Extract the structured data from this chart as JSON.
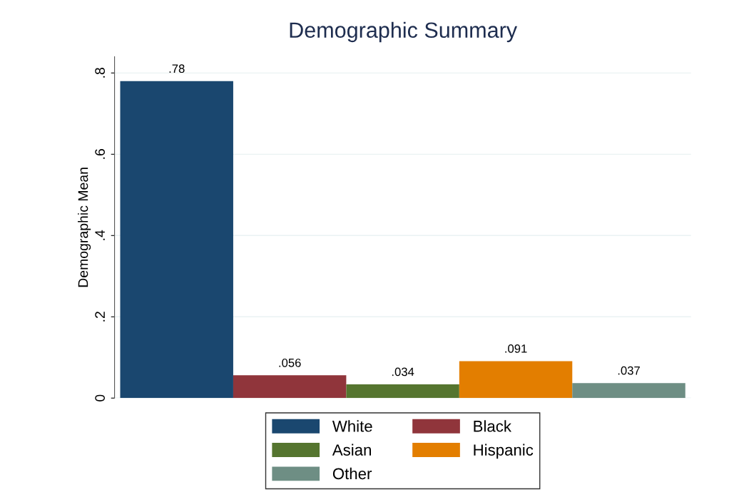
{
  "chart_data": {
    "type": "bar",
    "title": "Demographic Summary",
    "ylabel": "Demographic Mean",
    "categories": [
      null
    ],
    "series": [
      {
        "name": "White",
        "color": "#1a476f",
        "values": [
          0.78
        ],
        "value_labels": [
          ".78"
        ]
      },
      {
        "name": "Black",
        "color": "#90353b",
        "values": [
          0.056
        ],
        "value_labels": [
          ".056"
        ]
      },
      {
        "name": "Asian",
        "color": "#55752f",
        "values": [
          0.034
        ],
        "value_labels": [
          ".034"
        ]
      },
      {
        "name": "Hispanic",
        "color": "#e37e00",
        "values": [
          0.091
        ],
        "value_labels": [
          ".091"
        ]
      },
      {
        "name": "Other",
        "color": "#6e8e84",
        "values": [
          0.037
        ],
        "value_labels": [
          ".037"
        ]
      }
    ],
    "ylim": [
      0,
      0.84
    ],
    "yticks": [
      0,
      {
        "value": 0.2,
        "label": ".2"
      },
      {
        "value": 0.4,
        "label": ".4"
      },
      {
        "value": 0.6,
        "label": ".6"
      },
      {
        "value": 0.8,
        "label": ".8"
      }
    ],
    "grid": "y",
    "legend": "bottom"
  }
}
